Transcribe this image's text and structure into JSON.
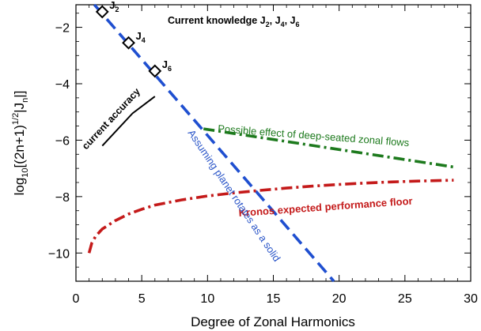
{
  "chart_data": {
    "type": "line",
    "xlabel": "Degree of Zonal Harmonics",
    "ylabel_parts": {
      "prefix": "log",
      "sub": "10",
      "body": "[(2n+1)",
      "sup": "1/2",
      "tail": "|J",
      "sub2": "n",
      "end": "|]"
    },
    "xlim": [
      0,
      30
    ],
    "ylim": [
      -11,
      -1.2
    ],
    "xticks": [
      0,
      5,
      10,
      15,
      20,
      25,
      30
    ],
    "yticks": [
      -10,
      -8,
      -6,
      -4,
      -2
    ],
    "grid": false,
    "series": [
      {
        "key": "solid_rotation",
        "color": "#1f4fd0",
        "style": "dashed",
        "x": [
          1.4,
          19.6
        ],
        "y": [
          -1.2,
          -11.0
        ]
      },
      {
        "key": "deep_zonal_flows",
        "color": "#1d7a1d",
        "style": "dashdot",
        "x": [
          9.7,
          28.7
        ],
        "y": [
          -5.6,
          -6.95
        ]
      },
      {
        "key": "kronos_floor",
        "color": "#c41a1a",
        "style": "dashdot",
        "x": [
          1,
          1.2,
          1.5,
          2,
          3,
          4,
          5,
          6,
          8,
          10,
          12,
          14,
          16,
          18,
          20,
          22,
          24,
          26,
          28.7
        ],
        "y": [
          -10.0,
          -9.65,
          -9.4,
          -9.15,
          -8.85,
          -8.62,
          -8.45,
          -8.3,
          -8.12,
          -7.98,
          -7.87,
          -7.78,
          -7.7,
          -7.63,
          -7.57,
          -7.52,
          -7.48,
          -7.45,
          -7.42
        ]
      },
      {
        "key": "current_accuracy",
        "color": "#000000",
        "style": "solid",
        "x": [
          2,
          4.3,
          6
        ],
        "y": [
          -6.2,
          -5.05,
          -4.45
        ]
      }
    ],
    "points": [
      {
        "x": 2,
        "y": -1.45,
        "label_main": "J",
        "label_sub": "2"
      },
      {
        "x": 4,
        "y": -2.55,
        "label_main": "J",
        "label_sub": "4"
      },
      {
        "x": 6,
        "y": -3.55,
        "label_main": "J",
        "label_sub": "6"
      }
    ],
    "annotations": {
      "current_knowledge": {
        "main": "Current knowledge J",
        "sub1": "2",
        "sep1": ", J",
        "sub2": "4",
        "sep2": ", J",
        "sub3": "6"
      },
      "current_accuracy": "current accuracy",
      "deep_flows": "Possible effect of deep-seated zonal flows",
      "kronos": "Kronos expected performance floor",
      "solid": "Assuming planet rotates as a solid"
    }
  }
}
